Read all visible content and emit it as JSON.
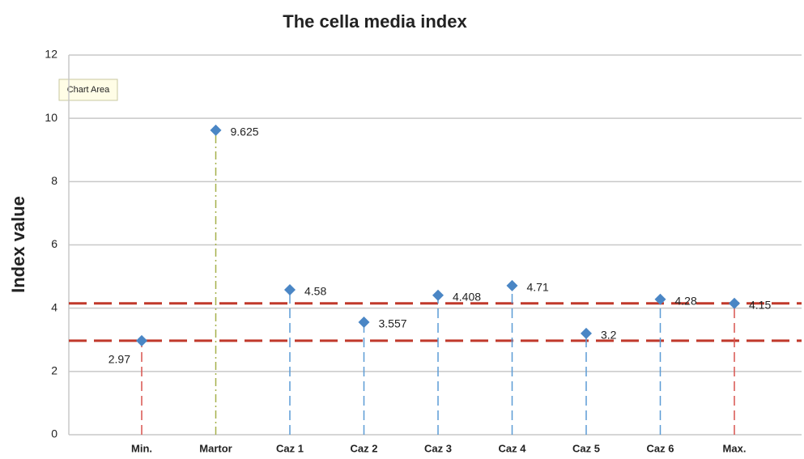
{
  "chart_data": {
    "type": "stem",
    "title": "The cella media index",
    "y_label": "Index value",
    "tooltip": "Chart Area",
    "categories": [
      "Min.",
      "Martor",
      "Caz 1",
      "Caz 2",
      "Caz 3",
      "Caz 4",
      "Caz 5",
      "Caz 6",
      "Max."
    ],
    "values": [
      2.97,
      9.625,
      4.58,
      3.557,
      4.408,
      4.71,
      3.2,
      4.28,
      4.15
    ],
    "marker_color": "#4a86c5",
    "stem_colors": [
      "#d9534f",
      "#a5b04a",
      "#5b9bd5",
      "#5b9bd5",
      "#5b9bd5",
      "#5b9bd5",
      "#5b9bd5",
      "#5b9bd5",
      "#d9534f"
    ],
    "reference_lines": [
      {
        "value": 4.15,
        "color": "#c0392b"
      },
      {
        "value": 2.97,
        "color": "#c0392b"
      }
    ],
    "ylim": [
      0,
      12
    ],
    "yticks": [
      0,
      2,
      4,
      6,
      8,
      10,
      12
    ],
    "grid": true
  }
}
